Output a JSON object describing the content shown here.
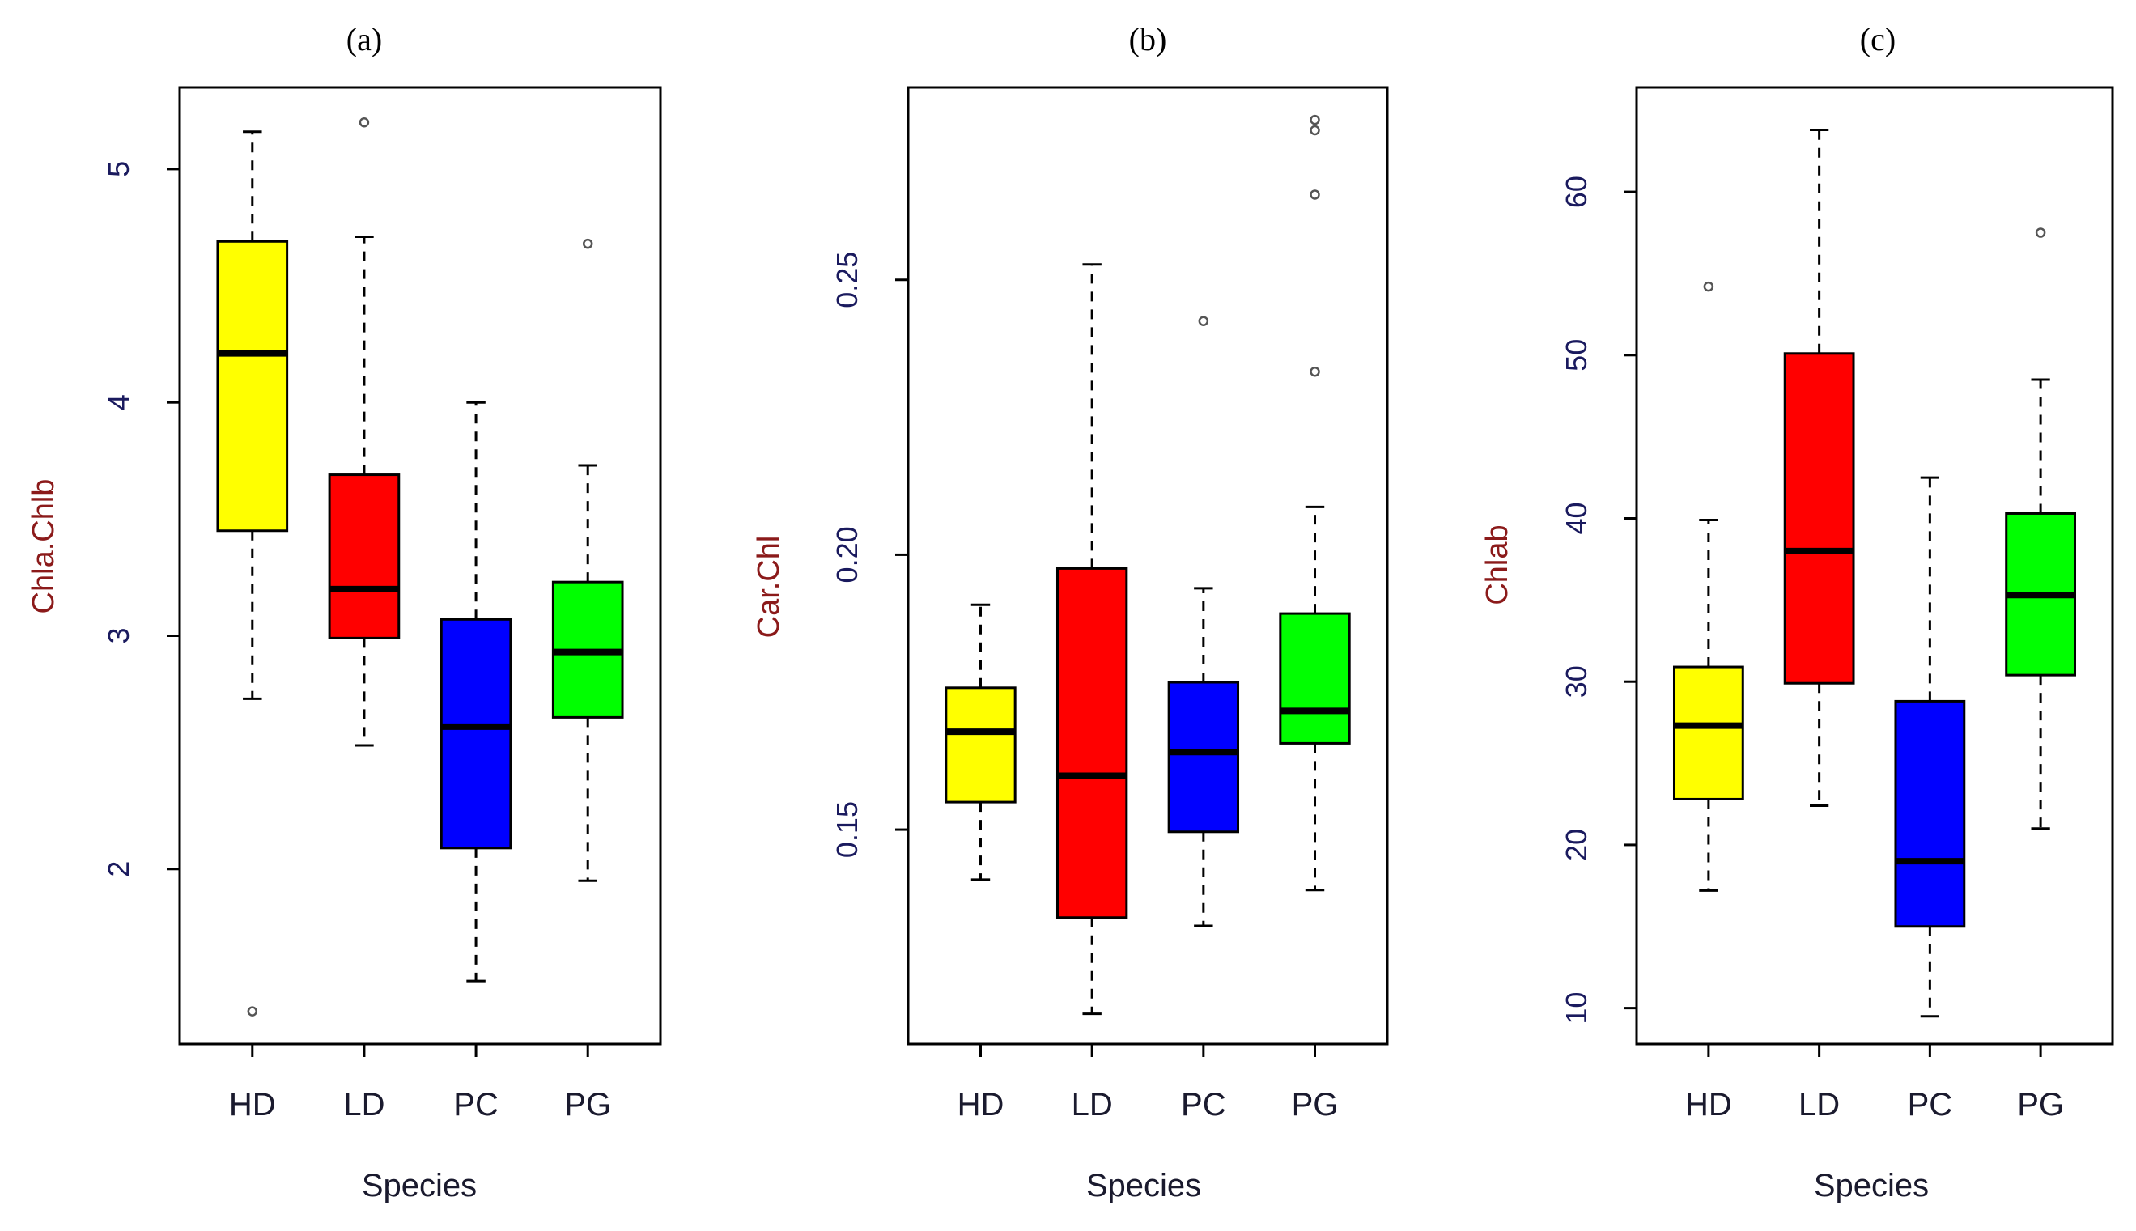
{
  "colors": {
    "HD": "#ffff00",
    "LD": "#ff0000",
    "PC": "#0000ff",
    "PG": "#00ff00",
    "stroke": "#000000"
  },
  "chart_data": [
    {
      "type": "boxplot",
      "title": "(a)",
      "xlabel": "Species",
      "ylabel": "Chla.Chlb",
      "categories": [
        "HD",
        "LD",
        "PC",
        "PG"
      ],
      "ylim": [
        1.25,
        5.35
      ],
      "yticks": [
        2,
        3,
        4,
        5
      ],
      "ytick_labels": [
        "2",
        "3",
        "4",
        "5"
      ],
      "boxes": [
        {
          "name": "HD",
          "whisker_low": 2.73,
          "q1": 3.45,
          "median": 4.21,
          "q3": 4.69,
          "whisker_high": 5.16,
          "outliers": [
            1.39
          ]
        },
        {
          "name": "LD",
          "whisker_low": 2.53,
          "q1": 2.99,
          "median": 3.2,
          "q3": 3.69,
          "whisker_high": 4.71,
          "outliers": [
            5.2
          ]
        },
        {
          "name": "PC",
          "whisker_low": 1.52,
          "q1": 2.09,
          "median": 2.61,
          "q3": 3.07,
          "whisker_high": 4.0,
          "outliers": []
        },
        {
          "name": "PG",
          "whisker_low": 1.95,
          "q1": 2.65,
          "median": 2.93,
          "q3": 3.23,
          "whisker_high": 3.73,
          "outliers": [
            4.68
          ]
        }
      ]
    },
    {
      "type": "boxplot",
      "title": "(b)",
      "xlabel": "Species",
      "ylabel": "Car.Chl",
      "categories": [
        "HD",
        "LD",
        "PC",
        "PG"
      ],
      "ylim": [
        0.111,
        0.285
      ],
      "yticks": [
        0.15,
        0.2,
        0.25
      ],
      "ytick_labels": [
        "0.15",
        "0.20",
        "0.25"
      ],
      "boxes": [
        {
          "name": "HD",
          "whisker_low": 0.1409,
          "q1": 0.155,
          "median": 0.1678,
          "q3": 0.1758,
          "whisker_high": 0.1909,
          "outliers": []
        },
        {
          "name": "LD",
          "whisker_low": 0.1165,
          "q1": 0.134,
          "median": 0.1598,
          "q3": 0.1975,
          "whisker_high": 0.2528,
          "outliers": []
        },
        {
          "name": "PC",
          "whisker_low": 0.1325,
          "q1": 0.1496,
          "median": 0.1641,
          "q3": 0.1768,
          "whisker_high": 0.1939,
          "outliers": [
            0.2425
          ]
        },
        {
          "name": "PG",
          "whisker_low": 0.139,
          "q1": 0.1657,
          "median": 0.1716,
          "q3": 0.1893,
          "whisker_high": 0.2087,
          "outliers": [
            0.2333,
            0.2655,
            0.2772,
            0.2791
          ]
        }
      ]
    },
    {
      "type": "boxplot",
      "title": "(c)",
      "xlabel": "Species",
      "ylabel": "Chlab",
      "categories": [
        "HD",
        "LD",
        "PC",
        "PG"
      ],
      "ylim": [
        7.8,
        66.4
      ],
      "yticks": [
        10,
        20,
        30,
        40,
        50,
        60
      ],
      "ytick_labels": [
        "10",
        "20",
        "30",
        "40",
        "50",
        "60"
      ],
      "boxes": [
        {
          "name": "HD",
          "whisker_low": 17.2,
          "q1": 22.8,
          "median": 27.3,
          "q3": 30.9,
          "whisker_high": 39.9,
          "outliers": [
            54.2
          ]
        },
        {
          "name": "LD",
          "whisker_low": 22.4,
          "q1": 29.9,
          "median": 38.0,
          "q3": 50.1,
          "whisker_high": 63.8,
          "outliers": []
        },
        {
          "name": "PC",
          "whisker_low": 9.5,
          "q1": 15.0,
          "median": 19.0,
          "q3": 28.8,
          "whisker_high": 42.5,
          "outliers": []
        },
        {
          "name": "PG",
          "whisker_low": 21.0,
          "q1": 30.4,
          "median": 35.3,
          "q3": 40.3,
          "whisker_high": 48.5,
          "outliers": [
            57.5
          ]
        }
      ]
    }
  ]
}
